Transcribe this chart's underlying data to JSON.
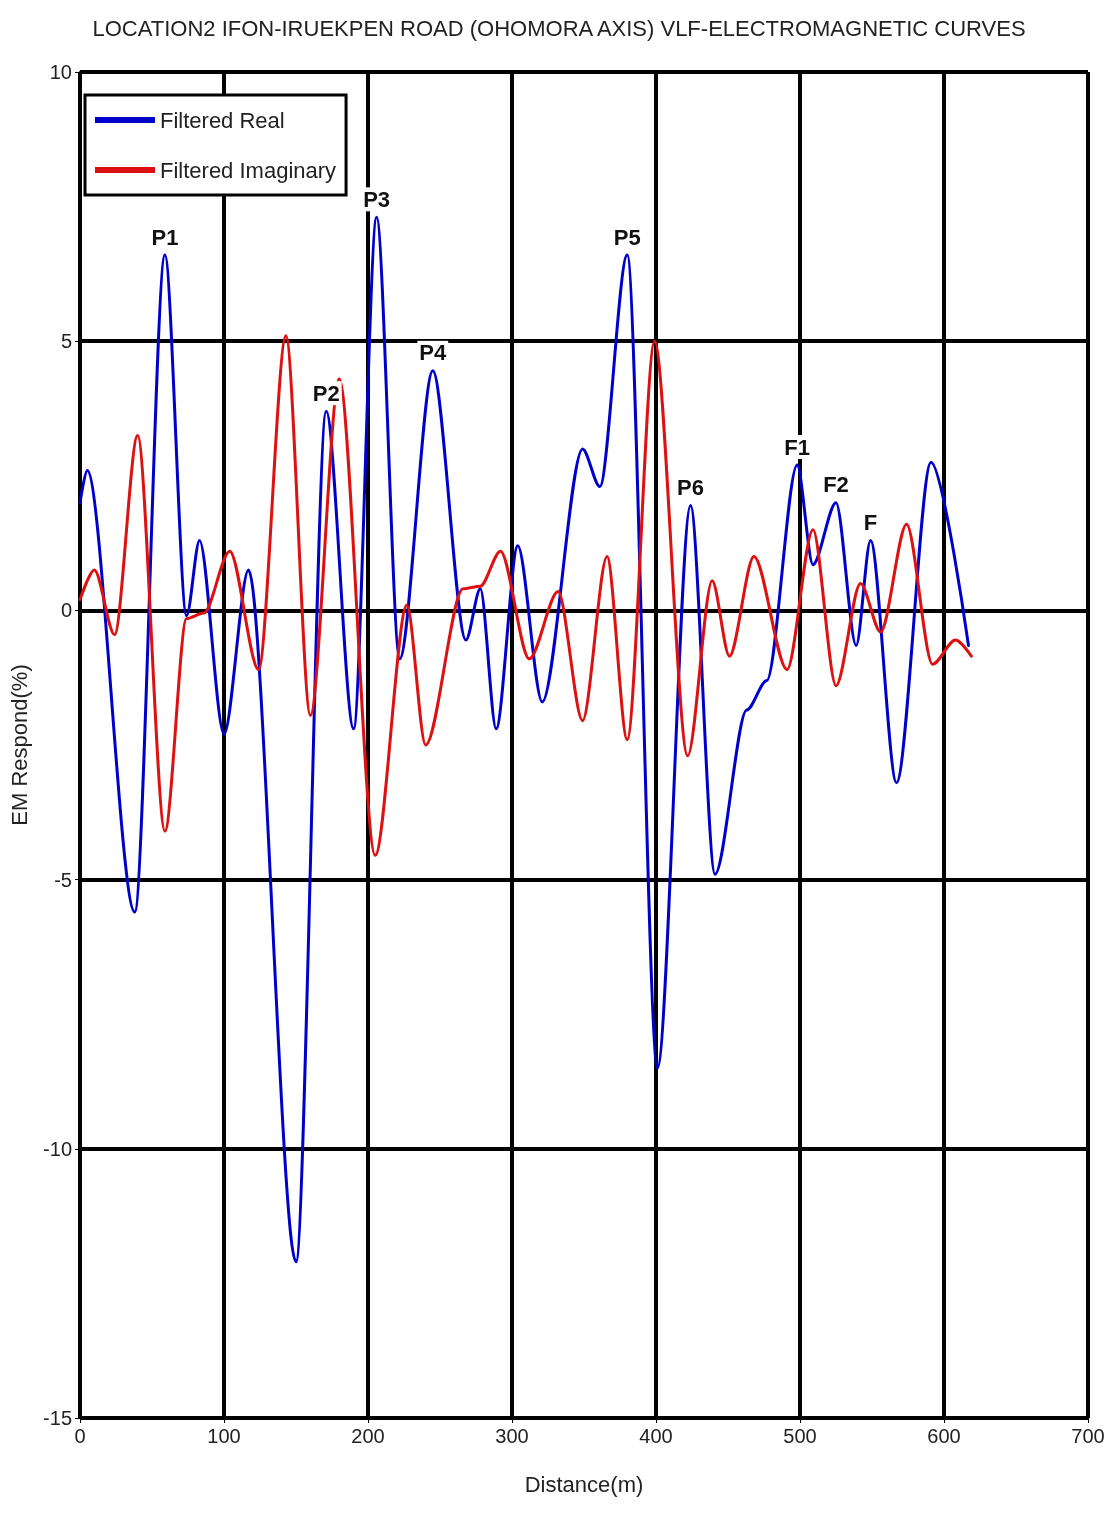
{
  "chart_data": {
    "type": "line",
    "title": "LOCATION2 IFON-IRUEKPEN ROAD (OHOMORA AXIS) VLF-ELECTROMAGNETIC CURVES",
    "xlabel": "Distance(m)",
    "ylabel": "EM Respond(%)",
    "xlim": [
      0,
      700
    ],
    "xticks": [
      0,
      100,
      200,
      300,
      400,
      500,
      600,
      700
    ],
    "ylim": [
      -15,
      10
    ],
    "yticks": [
      -15,
      -10,
      -5,
      0,
      5,
      10
    ],
    "grid": true,
    "legend": "top left",
    "marker": "none",
    "line_style": "solid",
    "series": [
      {
        "name": "Filtered Real",
        "color": "#0000cc",
        "x": [
          0,
          5,
          38,
          59,
          74,
          83,
          100,
          117,
          150,
          171,
          190,
          206,
          222,
          245,
          268,
          278,
          289,
          304,
          321,
          349,
          361,
          380,
          401,
          424,
          441,
          463,
          477,
          498,
          509,
          525,
          539,
          549,
          567,
          591,
          617
        ],
        "values": [
          2.0,
          2.6,
          -5.6,
          6.6,
          -0.1,
          1.3,
          -2.3,
          0.75,
          -12.1,
          3.7,
          -2.2,
          7.3,
          -0.9,
          4.45,
          -0.55,
          0.4,
          -2.2,
          1.2,
          -1.7,
          3.0,
          2.3,
          6.6,
          -8.5,
          1.95,
          -4.9,
          -1.85,
          -1.3,
          2.7,
          0.85,
          2.0,
          -0.65,
          1.3,
          -3.2,
          2.75,
          -0.65
        ]
      },
      {
        "name": "Filtered Imaginary",
        "color": "#dd1111",
        "x": [
          0,
          10,
          24,
          40,
          59,
          74,
          86,
          104,
          124,
          143,
          160,
          180,
          205,
          227,
          240,
          266,
          278,
          292,
          312,
          332,
          349,
          366,
          380,
          399,
          422,
          439,
          451,
          468,
          491,
          509,
          525,
          542,
          556,
          574,
          592,
          608,
          619
        ],
        "values": [
          0.2,
          0.75,
          -0.45,
          3.25,
          -4.1,
          -0.15,
          -0.05,
          1.1,
          -1.1,
          5.1,
          -1.95,
          4.3,
          -4.55,
          0.1,
          -2.5,
          0.4,
          0.45,
          1.1,
          -0.9,
          0.35,
          -2.05,
          1.0,
          -2.4,
          5.0,
          -2.7,
          0.55,
          -0.85,
          1.0,
          -1.1,
          1.5,
          -1.4,
          0.5,
          -0.4,
          1.6,
          -1.0,
          -0.55,
          -0.85
        ]
      }
    ],
    "annotations": [
      {
        "text": "P1",
        "x": 59,
        "y": 6.6
      },
      {
        "text": "P2",
        "x": 171,
        "y": 3.7
      },
      {
        "text": "P3",
        "x": 206,
        "y": 7.3
      },
      {
        "text": "P4",
        "x": 245,
        "y": 4.45
      },
      {
        "text": "P5",
        "x": 380,
        "y": 6.6
      },
      {
        "text": "P6",
        "x": 424,
        "y": 1.95
      },
      {
        "text": "F1",
        "x": 498,
        "y": 2.7
      },
      {
        "text": "F2",
        "x": 525,
        "y": 2.0
      },
      {
        "text": "F",
        "x": 549,
        "y": 1.3
      }
    ]
  }
}
